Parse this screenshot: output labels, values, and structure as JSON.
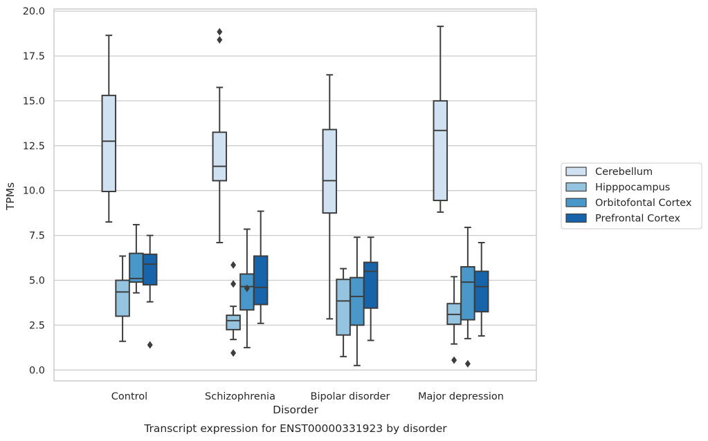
{
  "chart_data": {
    "type": "boxplot",
    "title": "",
    "caption": "Transcript expression for ENST00000331923 by disorder",
    "xlabel": "Disorder",
    "ylabel": "TPMs",
    "ylim": [
      -0.6,
      20.1
    ],
    "yticks": [
      0.0,
      2.5,
      5.0,
      7.5,
      10.0,
      12.5,
      15.0,
      17.5,
      20.0
    ],
    "ytick_labels": [
      "0.0",
      "2.5",
      "5.0",
      "7.5",
      "10.0",
      "12.5",
      "15.0",
      "17.5",
      "20.0"
    ],
    "grid": "horizontal",
    "legend_position": "right",
    "categories": [
      "Control",
      "Schizophrenia",
      "Bipolar disorder",
      "Major depression"
    ],
    "series": [
      {
        "name": "Cerebellum",
        "color": "#d0e1f2",
        "boxes": [
          {
            "whislo": 8.25,
            "q1": 9.95,
            "med": 12.75,
            "q3": 15.3,
            "whishi": 18.65,
            "fliers": []
          },
          {
            "whislo": 7.1,
            "q1": 10.55,
            "med": 11.35,
            "q3": 13.25,
            "whishi": 15.75,
            "fliers": [
              18.4,
              18.85
            ]
          },
          {
            "whislo": 2.85,
            "q1": 8.75,
            "med": 10.55,
            "q3": 13.4,
            "whishi": 16.45,
            "fliers": []
          },
          {
            "whislo": 8.8,
            "q1": 9.45,
            "med": 13.35,
            "q3": 15.0,
            "whishi": 19.15,
            "fliers": []
          }
        ]
      },
      {
        "name": "Hipppocampus",
        "color": "#94c4df",
        "boxes": [
          {
            "whislo": 1.6,
            "q1": 3.0,
            "med": 4.35,
            "q3": 5.0,
            "whishi": 6.35,
            "fliers": []
          },
          {
            "whislo": 1.7,
            "q1": 2.25,
            "med": 2.75,
            "q3": 3.05,
            "whishi": 3.55,
            "fliers": [
              0.95,
              4.8,
              5.85
            ]
          },
          {
            "whislo": 0.75,
            "q1": 1.95,
            "med": 3.85,
            "q3": 5.05,
            "whishi": 5.65,
            "fliers": []
          },
          {
            "whislo": 1.45,
            "q1": 2.55,
            "med": 3.1,
            "q3": 3.7,
            "whishi": 5.2,
            "fliers": [
              0.55
            ]
          }
        ]
      },
      {
        "name": "Orbitofontal Cortex",
        "color": "#4a98c9",
        "boxes": [
          {
            "whislo": 4.3,
            "q1": 4.9,
            "med": 5.1,
            "q3": 6.5,
            "whishi": 8.1,
            "fliers": []
          },
          {
            "whislo": 1.25,
            "q1": 3.35,
            "med": 4.65,
            "q3": 5.35,
            "whishi": 7.85,
            "fliers": [
              4.55
            ]
          },
          {
            "whislo": 0.25,
            "q1": 2.5,
            "med": 4.1,
            "q3": 5.15,
            "whishi": 7.4,
            "fliers": []
          },
          {
            "whislo": 1.75,
            "q1": 2.8,
            "med": 4.9,
            "q3": 5.75,
            "whishi": 7.95,
            "fliers": [
              0.35
            ]
          }
        ]
      },
      {
        "name": "Prefrontal Cortex",
        "color": "#1764ab",
        "boxes": [
          {
            "whislo": 3.8,
            "q1": 4.75,
            "med": 5.9,
            "q3": 6.45,
            "whishi": 7.5,
            "fliers": [
              1.4
            ]
          },
          {
            "whislo": 2.6,
            "q1": 3.65,
            "med": 4.6,
            "q3": 6.35,
            "whishi": 8.85,
            "fliers": []
          },
          {
            "whislo": 1.65,
            "q1": 3.45,
            "med": 5.5,
            "q3": 6.0,
            "whishi": 7.4,
            "fliers": []
          },
          {
            "whislo": 1.9,
            "q1": 3.25,
            "med": 4.65,
            "q3": 5.5,
            "whishi": 7.1,
            "fliers": []
          }
        ]
      }
    ]
  }
}
